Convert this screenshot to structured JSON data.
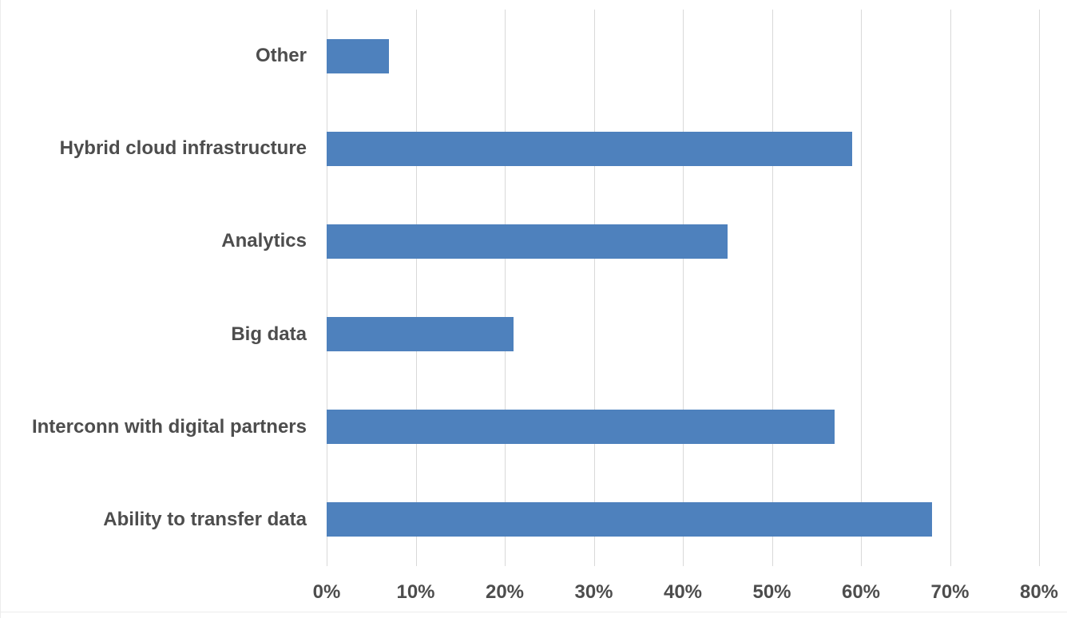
{
  "chart_data": {
    "type": "bar",
    "orientation": "horizontal",
    "title": "",
    "xlabel": "",
    "ylabel": "",
    "categories": [
      "Other",
      "Hybrid cloud infrastructure",
      "Analytics",
      "Big data",
      "Interconn with digital partners",
      "Ability to transfer data"
    ],
    "values": [
      7,
      59,
      45,
      21,
      57,
      68
    ],
    "unit": "%",
    "xlim": [
      0,
      80
    ],
    "tick_step": 10,
    "x_ticks": [
      "0%",
      "10%",
      "20%",
      "30%",
      "40%",
      "50%",
      "60%",
      "70%",
      "80%"
    ],
    "grid": true,
    "legend": "none",
    "colors": {
      "bar": "#4e81bd",
      "gridline": "#d9d9d9",
      "text": "#4d4d4d",
      "background": "#ffffff",
      "border": "#ececec"
    }
  }
}
